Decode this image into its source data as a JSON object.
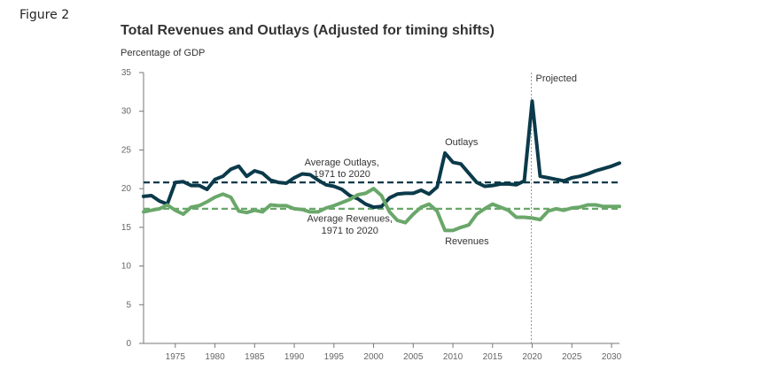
{
  "figure_label": "Figure 2",
  "chart_data": {
    "type": "line",
    "title": "Total Revenues and Outlays (Adjusted for timing shifts)",
    "ylabel": "Percentage of GDP",
    "xlabel": "",
    "xlim": [
      1971,
      2031
    ],
    "ylim": [
      0,
      35
    ],
    "y_ticks": [
      0,
      5,
      10,
      15,
      20,
      25,
      30,
      35
    ],
    "x_ticks": [
      1975,
      1980,
      1985,
      1990,
      1995,
      2000,
      2005,
      2010,
      2015,
      2020,
      2025,
      2030
    ],
    "grid": false,
    "colors": {
      "outlays": "#0b3a4a",
      "revenues": "#6aa76a",
      "projection_line": "#999999",
      "axis": "#777777"
    },
    "projection_start": 2021,
    "projection_label": "Projected",
    "series": [
      {
        "name": "Outlays",
        "label": "Outlays",
        "x": [
          1971,
          1972,
          1973,
          1974,
          1975,
          1976,
          1977,
          1978,
          1979,
          1980,
          1981,
          1982,
          1983,
          1984,
          1985,
          1986,
          1987,
          1988,
          1989,
          1990,
          1991,
          1992,
          1993,
          1994,
          1995,
          1996,
          1997,
          1998,
          1999,
          2000,
          2001,
          2002,
          2003,
          2004,
          2005,
          2006,
          2007,
          2008,
          2009,
          2010,
          2011,
          2012,
          2013,
          2014,
          2015,
          2016,
          2017,
          2018,
          2019,
          2020,
          2021,
          2022,
          2023,
          2024,
          2025,
          2026,
          2027,
          2028,
          2029,
          2030,
          2031
        ],
        "values": [
          19.0,
          19.1,
          18.4,
          18.0,
          20.8,
          20.9,
          20.4,
          20.4,
          19.9,
          21.2,
          21.6,
          22.5,
          22.9,
          21.6,
          22.3,
          22.0,
          21.1,
          20.8,
          20.7,
          21.4,
          21.9,
          21.8,
          21.1,
          20.5,
          20.3,
          19.9,
          19.1,
          18.7,
          18.0,
          17.6,
          17.7,
          18.8,
          19.3,
          19.4,
          19.4,
          19.8,
          19.3,
          20.2,
          24.6,
          23.4,
          23.2,
          22.0,
          20.8,
          20.3,
          20.4,
          20.6,
          20.6,
          20.5,
          21.0,
          31.3,
          21.6,
          21.4,
          21.2,
          21.0,
          21.4,
          21.6,
          21.9,
          22.3,
          22.6,
          22.9,
          23.3
        ]
      },
      {
        "name": "Revenues",
        "label": "Revenues",
        "x": [
          1971,
          1972,
          1973,
          1974,
          1975,
          1976,
          1977,
          1978,
          1979,
          1980,
          1981,
          1982,
          1983,
          1984,
          1985,
          1986,
          1987,
          1988,
          1989,
          1990,
          1991,
          1992,
          1993,
          1994,
          1995,
          1996,
          1997,
          1998,
          1999,
          2000,
          2001,
          2002,
          2003,
          2004,
          2005,
          2006,
          2007,
          2008,
          2009,
          2010,
          2011,
          2012,
          2013,
          2014,
          2015,
          2016,
          2017,
          2018,
          2019,
          2020,
          2021,
          2022,
          2023,
          2024,
          2025,
          2026,
          2027,
          2028,
          2029,
          2030,
          2031
        ],
        "values": [
          17.0,
          17.2,
          17.4,
          17.9,
          17.2,
          16.7,
          17.6,
          17.8,
          18.3,
          18.9,
          19.3,
          18.9,
          17.1,
          16.9,
          17.2,
          17.0,
          17.9,
          17.8,
          17.8,
          17.4,
          17.3,
          17.0,
          17.0,
          17.5,
          17.8,
          18.2,
          18.6,
          19.2,
          19.4,
          20.0,
          19.1,
          17.0,
          15.9,
          15.6,
          16.7,
          17.6,
          18.0,
          17.1,
          14.6,
          14.6,
          15.0,
          15.3,
          16.7,
          17.4,
          18.0,
          17.6,
          17.2,
          16.3,
          16.3,
          16.2,
          16.0,
          17.1,
          17.4,
          17.2,
          17.5,
          17.6,
          17.9,
          17.9,
          17.7,
          17.7,
          17.7
        ]
      }
    ],
    "reference_lines": [
      {
        "name": "avg-outlays",
        "value": 20.8,
        "label_line1": "Average Outlays,",
        "label_line2": "1971 to 2020"
      },
      {
        "name": "avg-revenues",
        "value": 17.4,
        "label_line1": "Average Revenues,",
        "label_line2": "1971 to 2020"
      }
    ]
  }
}
